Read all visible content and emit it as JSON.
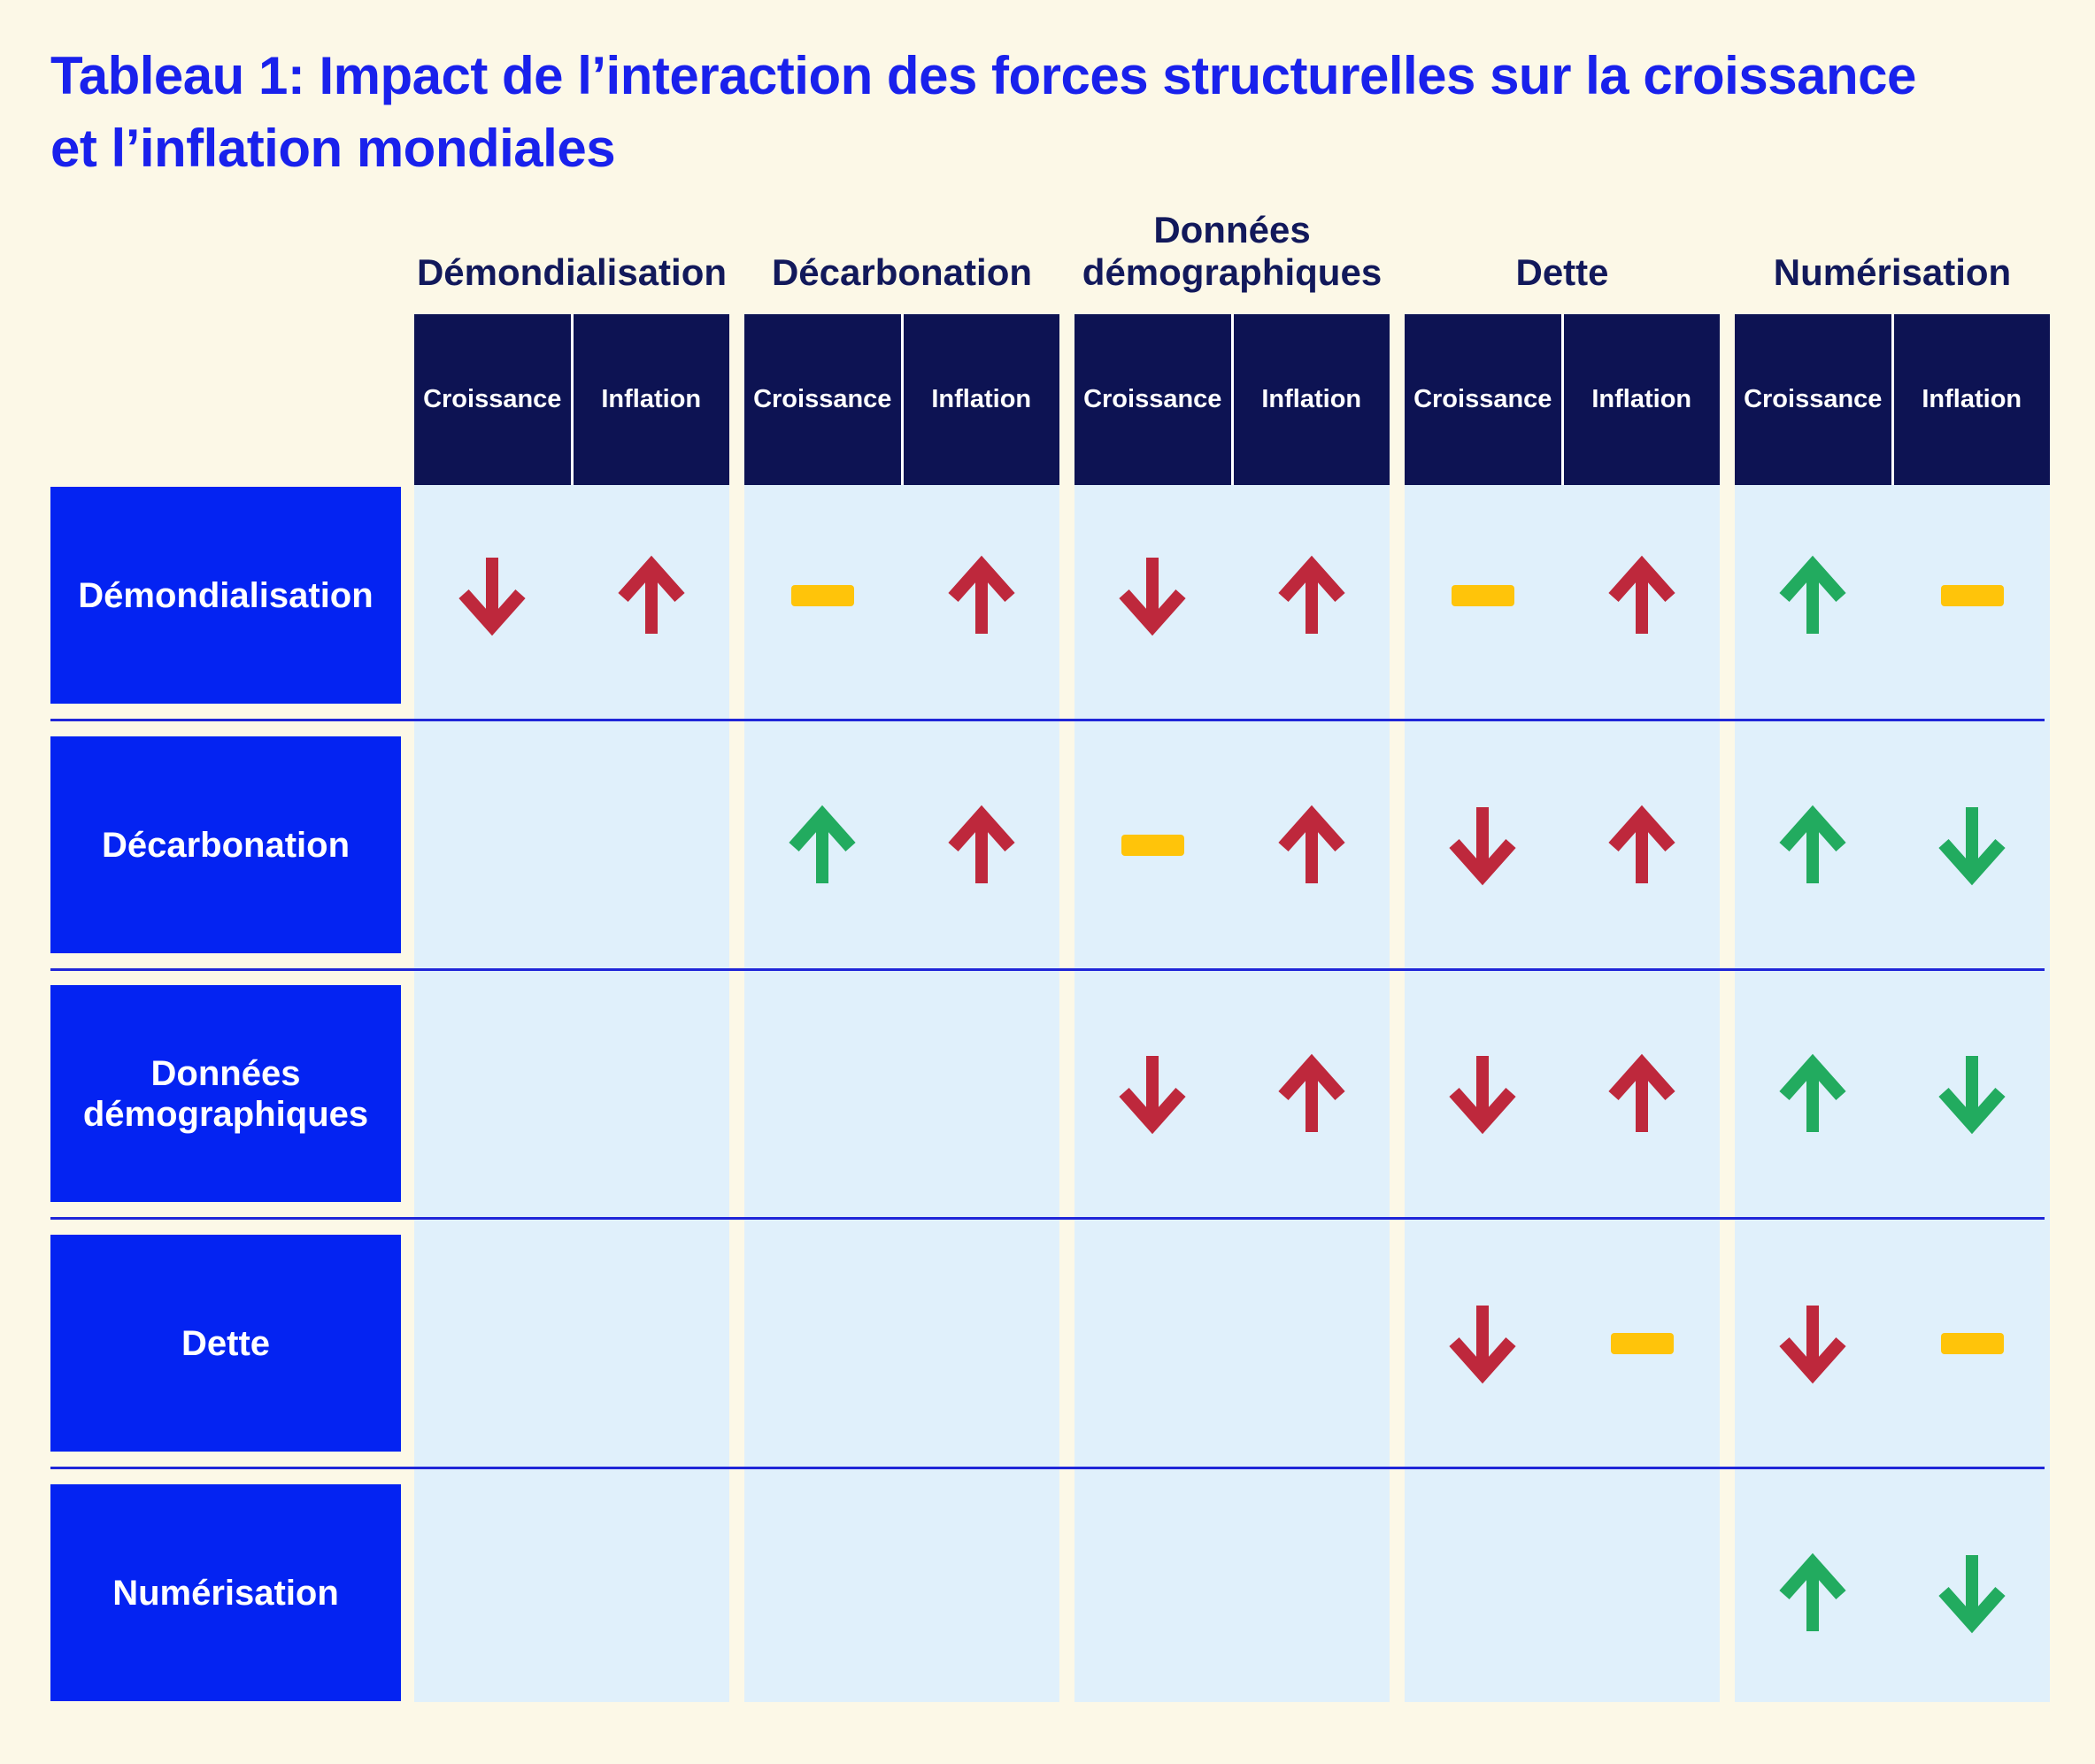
{
  "title": {
    "line1": "Tableau 1: Impact de l’interaction des forces structurelles sur la croissance",
    "line2": "et l’inflation mondiales"
  },
  "table": {
    "column_groups": [
      "Démondialisation",
      "Décarbonation",
      "Données démographiques",
      "Dette",
      "Numérisation"
    ],
    "sub_columns": [
      "Croissance",
      "Inflation"
    ],
    "rows": [
      {
        "label": "Démondialisation",
        "cells": [
          [
            "down-red",
            "up-red"
          ],
          [
            "neutral",
            "up-red"
          ],
          [
            "down-red",
            "up-red"
          ],
          [
            "neutral",
            "up-red"
          ],
          [
            "up-green",
            "neutral"
          ]
        ]
      },
      {
        "label": "Décarbonation",
        "cells": [
          [
            null,
            null
          ],
          [
            "up-green",
            "up-red"
          ],
          [
            "neutral",
            "up-red"
          ],
          [
            "down-red",
            "up-red"
          ],
          [
            "up-green",
            "down-green"
          ]
        ]
      },
      {
        "label": "Données démographiques",
        "cells": [
          [
            null,
            null
          ],
          [
            null,
            null
          ],
          [
            "down-red",
            "up-red"
          ],
          [
            "down-red",
            "up-red"
          ],
          [
            "up-green",
            "down-green"
          ]
        ]
      },
      {
        "label": "Dette",
        "cells": [
          [
            null,
            null
          ],
          [
            null,
            null
          ],
          [
            null,
            null
          ],
          [
            "down-red",
            "neutral"
          ],
          [
            "down-red",
            "neutral"
          ]
        ]
      },
      {
        "label": "Numérisation",
        "cells": [
          [
            null,
            null
          ],
          [
            null,
            null
          ],
          [
            null,
            null
          ],
          [
            null,
            null
          ],
          [
            "up-green",
            "down-green"
          ]
        ]
      }
    ]
  },
  "icons": {
    "up-red": "arrow-up-icon",
    "down-red": "arrow-down-icon",
    "up-green": "arrow-up-icon",
    "down-green": "arrow-down-icon",
    "neutral": "dash-icon"
  },
  "colors": {
    "background": "#FCF8E7",
    "title_blue": "#1921EC",
    "row_header_blue": "#0423F2",
    "header_navy": "#0D1353",
    "group_label_navy": "#12195B",
    "cell_light_blue": "#E0F0FB",
    "arrow_red": "#BE283C",
    "arrow_green": "#22AB5F",
    "dash_yellow": "#FFC40A",
    "separator_blue": "#2026D8"
  }
}
